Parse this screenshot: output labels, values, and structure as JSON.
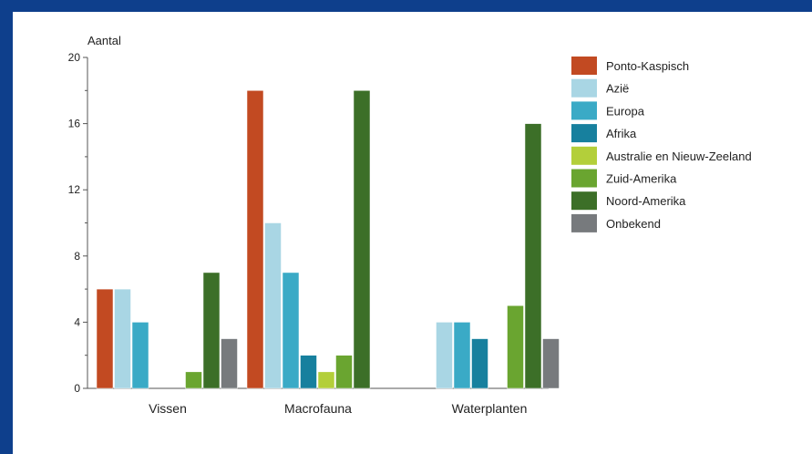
{
  "chart_data": {
    "type": "bar",
    "ylabel": "Aantal",
    "xlabel": "",
    "ylim": [
      0,
      20
    ],
    "yticks": [
      0,
      4,
      8,
      12,
      16,
      20
    ],
    "grid": false,
    "legend_position": "right",
    "categories": [
      "Vissen",
      "Macrofauna",
      "Waterplanten"
    ],
    "series": [
      {
        "name": "Ponto-Kaspisch",
        "color": "#c24a22",
        "values": [
          6,
          18,
          0
        ]
      },
      {
        "name": "Azië",
        "color": "#a9d6e4",
        "values": [
          6,
          10,
          4
        ]
      },
      {
        "name": "Europa",
        "color": "#3aaac6",
        "values": [
          4,
          7,
          4
        ]
      },
      {
        "name": "Afrika",
        "color": "#17809e",
        "values": [
          0,
          2,
          3
        ]
      },
      {
        "name": "Australie en Nieuw-Zeeland",
        "color": "#b3cf3a",
        "values": [
          0,
          1,
          0
        ]
      },
      {
        "name": "Zuid-Amerika",
        "color": "#6aa530",
        "values": [
          1,
          2,
          5
        ]
      },
      {
        "name": "Noord-Amerika",
        "color": "#3c6f28",
        "values": [
          7,
          18,
          16
        ]
      },
      {
        "name": "Onbekend",
        "color": "#777a7d",
        "values": [
          3,
          0,
          3
        ]
      }
    ]
  }
}
